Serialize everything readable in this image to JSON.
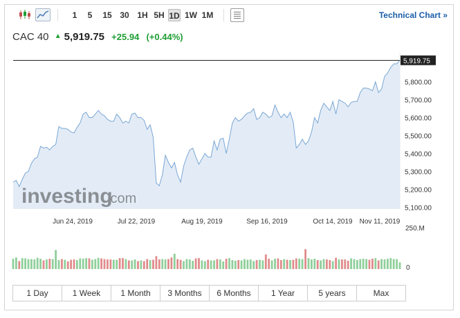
{
  "toolbar": {
    "chart_types": [
      {
        "icon": "candlestick-chart-icon"
      },
      {
        "icon": "area-chart-icon",
        "active": true
      }
    ],
    "intervals": [
      "1",
      "5",
      "15",
      "30",
      "1H",
      "5H",
      "1D",
      "1W",
      "1M"
    ],
    "active_interval": "1D",
    "settings_icon": "settings-panel-icon",
    "technical_link": "Technical Chart »"
  },
  "quote": {
    "name": "CAC 40",
    "direction_icon": "up-arrow-icon",
    "last": "5,919.75",
    "change": "+25.94",
    "change_pct": "(+0.44%)",
    "up_color": "#1f9e34",
    "down_color": "#c0504d"
  },
  "watermark": {
    "text": "investing",
    "suffix": ".com"
  },
  "chart_data": {
    "type": "area",
    "title": "",
    "series": [
      {
        "values": [
          5240,
          5250,
          5215,
          5255,
          5290,
          5300,
          5345,
          5370,
          5380,
          5440,
          5430,
          5435,
          5420,
          5440,
          5450,
          5550,
          5540,
          5540,
          5535,
          5520,
          5515,
          5545,
          5570,
          5620,
          5630,
          5600,
          5600,
          5620,
          5640,
          5620,
          5610,
          5590,
          5580,
          5580,
          5620,
          5600,
          5570,
          5580,
          5570,
          5620,
          5625,
          5600,
          5600,
          5585,
          5535,
          5560,
          5490,
          5235,
          5220,
          5280,
          5390,
          5350,
          5320,
          5350,
          5280,
          5240,
          5330,
          5380,
          5420,
          5430,
          5380,
          5340,
          5370,
          5400,
          5380,
          5380,
          5470,
          5420,
          5480,
          5485,
          5400,
          5480,
          5570,
          5600,
          5580,
          5590,
          5610,
          5625,
          5630,
          5650,
          5590,
          5600,
          5630,
          5620,
          5600,
          5610,
          5670,
          5630,
          5600,
          5620,
          5600,
          5630,
          5575,
          5430,
          5450,
          5480,
          5450,
          5470,
          5520,
          5600,
          5570,
          5640,
          5680,
          5660,
          5640,
          5690,
          5620,
          5700,
          5690,
          5680,
          5660,
          5685,
          5690,
          5690,
          5740,
          5765,
          5765,
          5760,
          5750,
          5800,
          5740,
          5760,
          5830,
          5850,
          5880,
          5900,
          5900,
          5919.75
        ]
      }
    ],
    "x_ticks": [
      "Jun 24, 2019",
      "Jul 22, 2019",
      "Aug 19, 2019",
      "Sep 16, 2019",
      "Oct 14, 2019",
      "Nov 11, 2019"
    ],
    "y_ticks": [
      "5,800.00",
      "5,700.00",
      "5,600.00",
      "5,500.00",
      "5,400.00",
      "5,300.00",
      "5,200.00",
      "5,100.00"
    ],
    "y_tick_values": [
      5800,
      5700,
      5600,
      5500,
      5400,
      5300,
      5200,
      5100
    ],
    "ylim": [
      5090,
      5960
    ],
    "last_price_label": "5,919.75",
    "volume": {
      "max_label": "250.M",
      "zero_label": "0",
      "ylim": [
        0,
        250
      ],
      "values": [
        62,
        70,
        48,
        66,
        64,
        60,
        60,
        58,
        68,
        62,
        52,
        58,
        62,
        60,
        60,
        54,
        60,
        56,
        46,
        56,
        58,
        54,
        64,
        62,
        66,
        64,
        56,
        60,
        68,
        64,
        60,
        58,
        58,
        56,
        56,
        66,
        66,
        60,
        52,
        52,
        58,
        48,
        52,
        48,
        60,
        54,
        56,
        70,
        58,
        60,
        58,
        60,
        70,
        56,
        60,
        56,
        48,
        60,
        58,
        50,
        64,
        66,
        52,
        48,
        56,
        52,
        52,
        60,
        58,
        46,
        62,
        66,
        54,
        50,
        54,
        52,
        60,
        56,
        58,
        48,
        54,
        56,
        52,
        54,
        62,
        52,
        62,
        64,
        54,
        60,
        56,
        54,
        56,
        64,
        62,
        60,
        58,
        66,
        58,
        62,
        54,
        52,
        60,
        58,
        54,
        48,
        68,
        58,
        58,
        58,
        50,
        64,
        60,
        54,
        60,
        62,
        60,
        56,
        62,
        66,
        52,
        60,
        58,
        62,
        66,
        60,
        60,
        40
      ],
      "spikes": {
        "14": 115,
        "47": 78,
        "53": 92,
        "83": 88,
        "96": 120,
        "114": 60
      }
    }
  },
  "ranges": [
    "1 Day",
    "1 Week",
    "1 Month",
    "3 Months",
    "6 Months",
    "1 Year",
    "5 years",
    "Max"
  ]
}
